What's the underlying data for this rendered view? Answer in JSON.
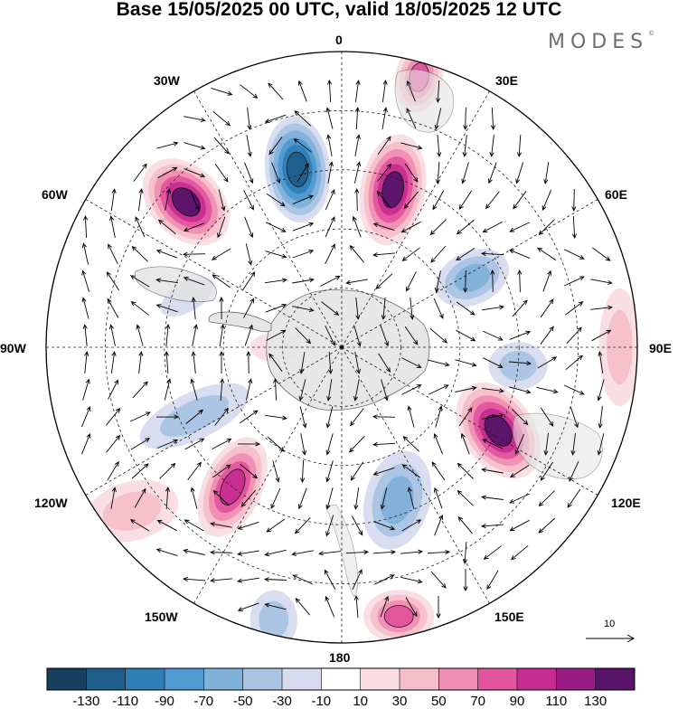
{
  "title": "Base 15/05/2025 00 UTC, valid 18/05/2025 12 UTC",
  "brand": {
    "name": "MODES",
    "mark": "©"
  },
  "longitude_labels": {
    "n": "0",
    "n30e": "30E",
    "n60e": "60E",
    "e90": "90E",
    "e120": "120E",
    "e150": "150E",
    "s180": "180",
    "w150": "150W",
    "w120": "120W",
    "w90": "90W",
    "w60": "60W",
    "w30": "30W"
  },
  "map": {
    "projection": "south polar stereographic",
    "field": "height anomaly with wind vectors",
    "grid": "dashed"
  },
  "anomaly_centers": [
    {
      "id": "pos-atlantic-sw",
      "value": 120,
      "bearing_deg": -47,
      "radial": 0.72,
      "rx": 0.12,
      "ry": 0.17,
      "angle": -45
    },
    {
      "id": "neg-atlantic",
      "value": -130,
      "bearing_deg": -14,
      "radial": 0.62,
      "rx": 0.11,
      "ry": 0.18,
      "angle": -5
    },
    {
      "id": "pos-east-atlantic",
      "value": 120,
      "bearing_deg": 18,
      "radial": 0.56,
      "rx": 0.11,
      "ry": 0.19,
      "angle": 10
    },
    {
      "id": "pos-africa",
      "value": 80,
      "bearing_deg": 16,
      "radial": 0.95,
      "rx": 0.08,
      "ry": 0.12,
      "angle": 10
    },
    {
      "id": "neg-indian",
      "value": -70,
      "bearing_deg": 62,
      "radial": 0.5,
      "rx": 0.13,
      "ry": 0.09,
      "angle": -25
    },
    {
      "id": "neg-indian-2",
      "value": -50,
      "bearing_deg": 96,
      "radial": 0.6,
      "rx": 0.1,
      "ry": 0.08,
      "angle": 0
    },
    {
      "id": "pos-east-indian",
      "value": 40,
      "bearing_deg": 90,
      "radial": 0.94,
      "rx": 0.07,
      "ry": 0.2,
      "angle": 0
    },
    {
      "id": "pos-australia-sw",
      "value": 120,
      "bearing_deg": 118,
      "radial": 0.6,
      "rx": 0.12,
      "ry": 0.18,
      "angle": -35
    },
    {
      "id": "neg-south-pacific",
      "value": -70,
      "bearing_deg": 160,
      "radial": 0.55,
      "rx": 0.11,
      "ry": 0.17,
      "angle": 15
    },
    {
      "id": "pos-tasman",
      "value": 90,
      "bearing_deg": 168,
      "radial": 0.93,
      "rx": 0.12,
      "ry": 0.09,
      "angle": 0
    },
    {
      "id": "neg-pacific-2",
      "value": -50,
      "bearing_deg": 194,
      "radial": 0.95,
      "rx": 0.08,
      "ry": 0.1,
      "angle": 0
    },
    {
      "id": "pos-pacific",
      "value": 110,
      "bearing_deg": 218,
      "radial": 0.6,
      "rx": 0.1,
      "ry": 0.18,
      "angle": 25
    },
    {
      "id": "pos-pacific-far",
      "value": 40,
      "bearing_deg": 232,
      "radial": 0.9,
      "rx": 0.16,
      "ry": 0.1,
      "angle": -15
    },
    {
      "id": "neg-pacific-west",
      "value": -50,
      "bearing_deg": 245,
      "radial": 0.55,
      "rx": 0.2,
      "ry": 0.08,
      "angle": -25
    },
    {
      "id": "pos-near-pole",
      "value": 30,
      "bearing_deg": 270,
      "radial": 0.22,
      "rx": 0.09,
      "ry": 0.05,
      "angle": 0
    },
    {
      "id": "neg-argentina",
      "value": -30,
      "bearing_deg": -72,
      "radial": 0.55,
      "rx": 0.1,
      "ry": 0.05,
      "angle": -30
    }
  ],
  "colorbar": {
    "colors": [
      "#153f5c",
      "#1f5f8a",
      "#2e7db5",
      "#4f9ad0",
      "#80b1d9",
      "#abc3e3",
      "#d6dcee",
      "#ffffff",
      "#f9dde1",
      "#f5bfc9",
      "#f08fb3",
      "#e2559d",
      "#c72d91",
      "#9a1c85",
      "#581469"
    ],
    "labels": [
      "-130",
      "-110",
      "-90",
      "-70",
      "-50",
      "-30",
      "-10",
      "10",
      "30",
      "50",
      "70",
      "90",
      "110",
      "130"
    ]
  },
  "reference_vector": {
    "label": "10"
  }
}
